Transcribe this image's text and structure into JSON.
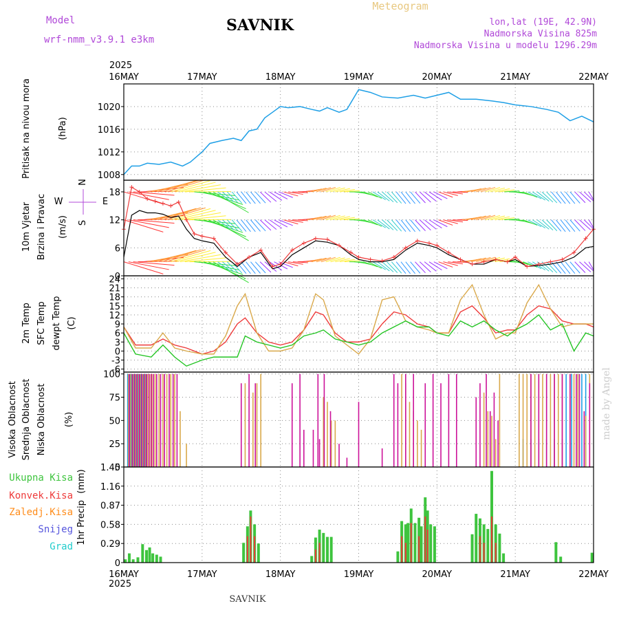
{
  "header": {
    "model_label": "Model",
    "model_name": "wrf-nmm_v3.9.1 e3km",
    "station": "SAVNIK",
    "product": "Meteogram",
    "lonlat": "lon,lat (19E, 42.9N)",
    "elevation": "Nadmorska Visina 825m",
    "model_elevation": "Nadmorska Visina u modelu 1296.29m"
  },
  "footer": {
    "station": "SAVNIK",
    "credit": "made by Angel"
  },
  "colors": {
    "pressure": "#1e9fe6",
    "t2m": "#ee3a3a",
    "sfc": "#d9a84a",
    "dew": "#22c422",
    "cloud_high": "#1e9fe6",
    "cloud_mid": "#d9a84a",
    "cloud_low": "#cc1199",
    "precip_total": "#3ec43e",
    "precip_conv": "#ee3a3a",
    "precip_frz": "#ff8c1a",
    "snow": "#5555dd",
    "hail": "#22cccc"
  },
  "time_axis": {
    "year": "2025",
    "ticks": [
      "16MAY",
      "17MAY",
      "18MAY",
      "19MAY",
      "20MAY",
      "21MAY",
      "22MAY"
    ]
  },
  "chart_data": [
    {
      "type": "line",
      "id": "pressure",
      "ylabel_line1": "Pritisak na nivou mora",
      "units": "(hPa)",
      "ylim": [
        1007,
        1024
      ],
      "yticks": [
        "1008",
        "1012",
        "1016",
        "1020"
      ],
      "x_days": [
        0,
        0.1,
        0.2,
        0.3,
        0.45,
        0.6,
        0.75,
        0.85,
        1.0,
        1.1,
        1.25,
        1.4,
        1.5,
        1.6,
        1.7,
        1.8,
        1.9,
        2.0,
        2.1,
        2.25,
        2.4,
        2.5,
        2.6,
        2.75,
        2.85,
        3.0,
        3.15,
        3.3,
        3.5,
        3.7,
        3.85,
        4.0,
        4.15,
        4.3,
        4.5,
        4.7,
        4.85,
        5.0,
        5.2,
        5.4,
        5.55,
        5.7,
        5.85,
        6.0
      ],
      "series": [
        {
          "name": "Sea level pressure",
          "values": [
            1008,
            1009.5,
            1009.5,
            1010,
            1009.8,
            1010.2,
            1009.5,
            1010.2,
            1012,
            1013.5,
            1014,
            1014.4,
            1014,
            1015.7,
            1016,
            1018,
            1019,
            1020,
            1019.8,
            1020,
            1019.5,
            1019.2,
            1019.8,
            1019,
            1019.5,
            1023,
            1022.5,
            1021.7,
            1021.5,
            1022,
            1021.5,
            1022,
            1022.5,
            1021.3,
            1021.3,
            1021,
            1020.7,
            1020.3,
            1020,
            1019.5,
            1019,
            1017.5,
            1018.3,
            1017.3
          ]
        }
      ]
    },
    {
      "type": "line",
      "id": "wind",
      "ylabel_line1": "10m Vjetar",
      "ylabel_line2": "Brzina i Pravac",
      "units": "(m/s)",
      "compass": [
        "N",
        "W",
        "E",
        "S"
      ],
      "ylim": [
        0,
        20.5
      ],
      "yticks": [
        "0",
        "6",
        "12",
        "18"
      ],
      "x_days": [
        0,
        0.1,
        0.2,
        0.3,
        0.4,
        0.5,
        0.6,
        0.7,
        0.8,
        0.9,
        1.0,
        1.15,
        1.3,
        1.45,
        1.6,
        1.75,
        1.9,
        2.0,
        2.15,
        2.3,
        2.45,
        2.6,
        2.75,
        2.9,
        3.0,
        3.15,
        3.3,
        3.45,
        3.6,
        3.75,
        3.9,
        4.0,
        4.15,
        4.3,
        4.45,
        4.6,
        4.75,
        4.9,
        5.0,
        5.15,
        5.3,
        5.45,
        5.6,
        5.75,
        5.9,
        6.0
      ],
      "series": [
        {
          "name": "Wind speed",
          "values": [
            4,
            13,
            14,
            13.5,
            13.5,
            13.2,
            12.5,
            12.8,
            10,
            8,
            7.5,
            7,
            4,
            2,
            4,
            5,
            1.5,
            2,
            4.5,
            6,
            7.5,
            7.2,
            6.5,
            4.5,
            3.5,
            3,
            3,
            3.5,
            5.5,
            7,
            6.5,
            6,
            4.5,
            3.5,
            2.5,
            2.5,
            3.5,
            3,
            3.5,
            2,
            2.2,
            2.5,
            3,
            4,
            6,
            6.3
          ]
        },
        {
          "name": "Wind gust",
          "values": [
            10,
            19,
            18,
            16.5,
            16,
            15.5,
            15,
            15.8,
            12,
            9,
            8.5,
            8,
            5,
            2.5,
            4,
            5.5,
            2,
            2.5,
            5.5,
            7,
            8,
            7.8,
            6.5,
            5,
            4,
            3.5,
            3.2,
            4,
            6,
            7.5,
            7,
            6.5,
            5,
            3.5,
            2.5,
            3,
            3.5,
            3,
            4,
            2,
            2.5,
            3,
            3.5,
            5,
            8,
            10
          ]
        }
      ]
    },
    {
      "type": "line",
      "id": "temperature",
      "ylabel_line1": "2m Temp",
      "ylabel_line2": "SFC Temp",
      "ylabel_line3": "dewpt Temp",
      "units": "(C)",
      "ylim": [
        -7,
        25
      ],
      "yticks": [
        "-6",
        "-3",
        "0",
        "3",
        "6",
        "9",
        "12",
        "15",
        "18",
        "21",
        "24"
      ],
      "x_days": [
        0,
        0.15,
        0.35,
        0.5,
        0.65,
        0.8,
        1.0,
        1.15,
        1.3,
        1.45,
        1.55,
        1.7,
        1.85,
        2.0,
        2.15,
        2.3,
        2.45,
        2.55,
        2.7,
        2.85,
        3.0,
        3.15,
        3.3,
        3.45,
        3.6,
        3.75,
        3.9,
        4.0,
        4.15,
        4.3,
        4.45,
        4.6,
        4.75,
        4.9,
        5.0,
        5.15,
        5.3,
        5.45,
        5.6,
        5.75,
        5.9,
        6.0
      ],
      "series": [
        {
          "name": "2m Temp",
          "values": [
            8,
            2,
            2,
            4,
            2,
            1,
            -1,
            0,
            3,
            9,
            11,
            6,
            3,
            2,
            3,
            7,
            13,
            12,
            6,
            3,
            3,
            4,
            9,
            13,
            12,
            9,
            8,
            6,
            6,
            13,
            15,
            11,
            6,
            7,
            7,
            12,
            15,
            14,
            10,
            9,
            9,
            8
          ]
        },
        {
          "name": "SFC Temp",
          "values": [
            8,
            1,
            1,
            6,
            1,
            0,
            -1,
            -1,
            5,
            15,
            19,
            6,
            0,
            0,
            1,
            7,
            19,
            17,
            5,
            2,
            -1,
            4,
            17,
            18,
            10,
            8,
            7,
            6,
            6,
            17,
            22,
            12,
            4,
            6,
            6,
            16,
            22,
            14,
            8,
            9,
            9,
            9
          ]
        },
        {
          "name": "dewpt Temp",
          "values": [
            6,
            -1,
            -2,
            2,
            -2,
            -5,
            -3,
            -2,
            -2,
            -2,
            5,
            3,
            2,
            1,
            2,
            5,
            6,
            7,
            4,
            3,
            2,
            3,
            6,
            8,
            10,
            8,
            8,
            6,
            5,
            10,
            8,
            10,
            7,
            5,
            7,
            9,
            12,
            7,
            9,
            0,
            6,
            5
          ]
        }
      ]
    },
    {
      "type": "bar",
      "id": "cloud",
      "ylabel_line1": "Visoka Oblacnost",
      "ylabel_line2": "Srednja Oblacnost",
      "ylabel_line3": "Niska Oblacnost",
      "units": "(%)",
      "ylim": [
        0,
        102
      ],
      "yticks": [
        "0",
        "25",
        "50",
        "75",
        "100"
      ],
      "series": [
        {
          "name": "High",
          "x_days": [
            0.05,
            0.08,
            0.1,
            0.13,
            0.16,
            0.19,
            0.22,
            0.25,
            0.28,
            5.1,
            5.2,
            5.3,
            5.4,
            5.5,
            5.6,
            5.65,
            5.72,
            5.8,
            5.85,
            5.9
          ],
          "values": [
            100,
            100,
            100,
            100,
            100,
            100,
            100,
            100,
            100,
            30,
            30,
            30,
            30,
            30,
            30,
            100,
            100,
            100,
            100,
            100
          ]
        },
        {
          "name": "Mid",
          "x_days": [
            0.06,
            0.09,
            0.12,
            0.15,
            0.18,
            0.21,
            0.24,
            0.27,
            0.3,
            0.33,
            0.36,
            0.4,
            0.45,
            0.5,
            0.55,
            0.6,
            0.65,
            0.72,
            0.8,
            1.55,
            1.65,
            1.7,
            1.75,
            2.55,
            2.6,
            2.65,
            2.7,
            3.55,
            3.6,
            3.65,
            3.7,
            3.75,
            3.8,
            4.6,
            4.65,
            4.7,
            4.75,
            4.8,
            5.05,
            5.1,
            5.15,
            5.2,
            5.25,
            5.3,
            5.35,
            5.4,
            5.45,
            5.5,
            5.55,
            5.6,
            5.7,
            5.75,
            5.8,
            5.9,
            5.95
          ],
          "values": [
            100,
            100,
            100,
            100,
            100,
            100,
            100,
            100,
            100,
            100,
            100,
            100,
            100,
            100,
            100,
            100,
            100,
            60,
            25,
            90,
            80,
            90,
            100,
            75,
            70,
            50,
            50,
            100,
            90,
            70,
            60,
            50,
            40,
            80,
            60,
            55,
            30,
            100,
            100,
            100,
            100,
            100,
            100,
            100,
            100,
            100,
            100,
            100,
            100,
            100,
            100,
            100,
            100,
            55,
            100
          ]
        },
        {
          "name": "Low",
          "x_days": [
            0.07,
            0.11,
            0.14,
            0.17,
            0.2,
            0.23,
            0.26,
            0.29,
            0.32,
            0.35,
            0.38,
            0.42,
            0.47,
            0.52,
            0.58,
            0.63,
            0.68,
            1.5,
            1.6,
            1.68,
            2.15,
            2.25,
            2.3,
            2.42,
            2.48,
            2.5,
            2.56,
            2.64,
            2.75,
            2.85,
            3.0,
            3.3,
            3.45,
            3.5,
            3.6,
            3.7,
            3.85,
            3.95,
            4.05,
            4.15,
            4.25,
            4.5,
            4.55,
            4.63,
            4.68,
            4.73,
            4.78,
            5.2,
            5.3,
            5.4,
            5.5,
            5.6,
            5.7,
            5.78,
            5.82,
            5.88,
            5.95
          ],
          "values": [
            100,
            100,
            100,
            100,
            100,
            100,
            100,
            100,
            100,
            100,
            100,
            100,
            100,
            100,
            100,
            100,
            100,
            90,
            100,
            90,
            90,
            100,
            40,
            40,
            100,
            30,
            100,
            60,
            25,
            10,
            70,
            20,
            100,
            90,
            100,
            100,
            90,
            100,
            90,
            100,
            100,
            75,
            90,
            100,
            60,
            80,
            50,
            100,
            100,
            100,
            100,
            100,
            100,
            100,
            100,
            60,
            90
          ]
        }
      ]
    },
    {
      "type": "bar",
      "id": "precip",
      "ylabel_line1": "1hr Precip",
      "units": "(mm)",
      "legend": [
        "Ukupna Kisa",
        "Konvek.Kisa",
        "Zaledj.Kisa",
        "Snijeg",
        "Grad"
      ],
      "ylim": [
        0,
        1.45
      ],
      "yticks": [
        "0",
        "0.29",
        "0.58",
        "0.87",
        "1.16",
        "1.45"
      ],
      "series": [
        {
          "name": "Total rain",
          "x_days": [
            0.02,
            0.07,
            0.12,
            0.18,
            0.24,
            0.29,
            0.33,
            0.37,
            0.42,
            0.47,
            1.53,
            1.58,
            1.62,
            1.67,
            1.72,
            2.4,
            2.45,
            2.5,
            2.55,
            2.6,
            2.65,
            3.5,
            3.55,
            3.6,
            3.63,
            3.67,
            3.72,
            3.77,
            3.8,
            3.85,
            3.88,
            3.92,
            3.97,
            4.45,
            4.5,
            4.55,
            4.6,
            4.65,
            4.7,
            4.75,
            4.8,
            4.85,
            5.52,
            5.58,
            5.98
          ],
          "values": [
            0.05,
            0.14,
            0.05,
            0.08,
            0.28,
            0.19,
            0.23,
            0.14,
            0.12,
            0.09,
            0.3,
            0.55,
            0.79,
            0.58,
            0.29,
            0.1,
            0.38,
            0.5,
            0.45,
            0.39,
            0.39,
            0.17,
            0.63,
            0.58,
            0.6,
            0.82,
            0.6,
            0.68,
            0.55,
            0.99,
            0.79,
            0.58,
            0.55,
            0.43,
            0.74,
            0.67,
            0.58,
            0.51,
            1.39,
            0.58,
            0.44,
            0.14,
            0.31,
            0.09,
            0.15
          ]
        },
        {
          "name": "Convective rain",
          "x_days": [
            1.58,
            1.62,
            1.67,
            2.45,
            2.5,
            3.55,
            3.6,
            3.67,
            3.77,
            3.85,
            3.88,
            4.55,
            4.6,
            4.7,
            4.75
          ],
          "values": [
            0.4,
            0.7,
            0.4,
            0.2,
            0.3,
            0.4,
            0.3,
            0.6,
            0.4,
            0.7,
            0.5,
            0.4,
            0.3,
            0.7,
            0.3
          ]
        }
      ]
    }
  ]
}
